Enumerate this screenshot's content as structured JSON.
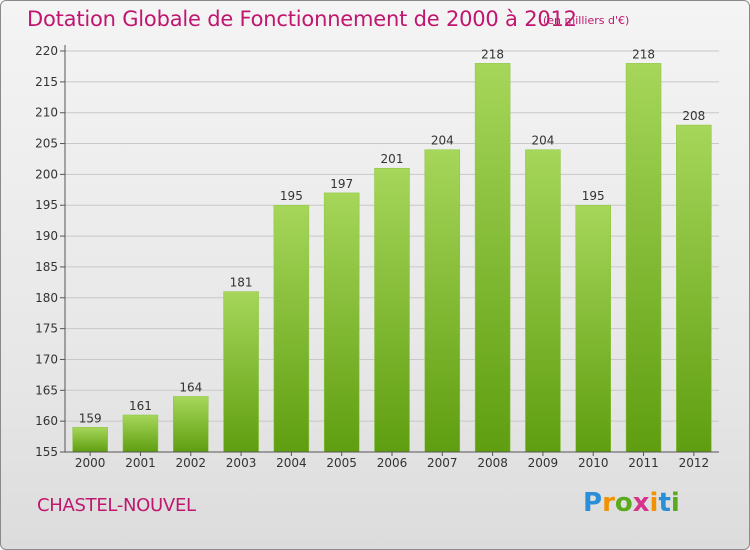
{
  "header": {
    "title": "Dotation Globale de Fonctionnement de 2000 à 2012",
    "unit": "(en milliers d'€)"
  },
  "footer": {
    "town": "CHASTEL-NOUVEL",
    "logo": "Proxiti",
    "logo_colors": [
      "#2b8fd8",
      "#f39200",
      "#5aaa1e",
      "#d6338a",
      "#f39200",
      "#2b8fd8",
      "#5aaa1e"
    ]
  },
  "colors": {
    "bar_light": "#a6d65a",
    "bar_dark": "#5f9e10",
    "title": "#c0166f",
    "grid": "#c8c8c8"
  },
  "chart_data": {
    "type": "bar",
    "title": "Dotation Globale de Fonctionnement de 2000 à 2012",
    "xlabel": "",
    "ylabel": "",
    "ylim": [
      155,
      220
    ],
    "yticks": [
      155,
      160,
      165,
      170,
      175,
      180,
      185,
      190,
      195,
      200,
      205,
      210,
      215,
      220
    ],
    "grid": true,
    "categories": [
      "2000",
      "2001",
      "2002",
      "2003",
      "2004",
      "2005",
      "2006",
      "2007",
      "2008",
      "2009",
      "2010",
      "2011",
      "2012"
    ],
    "values": [
      159,
      161,
      164,
      181,
      195,
      197,
      201,
      204,
      218,
      204,
      195,
      218,
      208
    ]
  }
}
